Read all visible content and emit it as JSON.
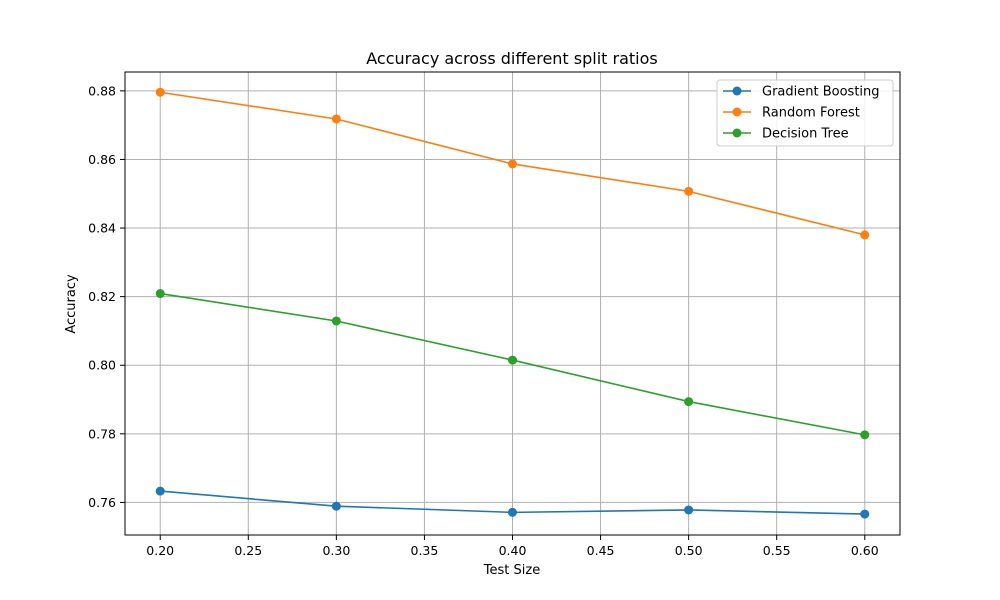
{
  "chart_data": {
    "type": "line",
    "title": "Accuracy across different split ratios",
    "xlabel": "Test Size",
    "ylabel": "Accuracy",
    "x": [
      0.2,
      0.3,
      0.4,
      0.5,
      0.6
    ],
    "xlim": [
      0.18,
      0.62
    ],
    "ylim": [
      0.7505,
      0.8855
    ],
    "xticks": [
      0.2,
      0.25,
      0.3,
      0.35,
      0.4,
      0.45,
      0.5,
      0.55,
      0.6
    ],
    "xtick_labels": [
      "0.20",
      "0.25",
      "0.30",
      "0.35",
      "0.40",
      "0.45",
      "0.50",
      "0.55",
      "0.60"
    ],
    "yticks": [
      0.76,
      0.78,
      0.8,
      0.82,
      0.84,
      0.86,
      0.88
    ],
    "ytick_labels": [
      "0.76",
      "0.78",
      "0.80",
      "0.82",
      "0.84",
      "0.86",
      "0.88"
    ],
    "grid": true,
    "legend_position": "top-right",
    "series": [
      {
        "name": "Gradient Boosting",
        "color": "#1f77b4",
        "values": [
          0.7633,
          0.7589,
          0.7571,
          0.7578,
          0.7566
        ]
      },
      {
        "name": "Random Forest",
        "color": "#ff7f0e",
        "values": [
          0.8796,
          0.8718,
          0.8587,
          0.8507,
          0.838
        ]
      },
      {
        "name": "Decision Tree",
        "color": "#2ca02c",
        "values": [
          0.8209,
          0.8129,
          0.8015,
          0.7894,
          0.7797
        ]
      }
    ]
  }
}
